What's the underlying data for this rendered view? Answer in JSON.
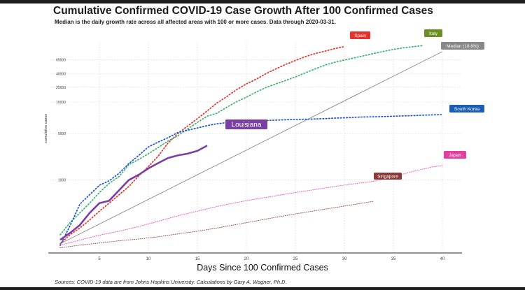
{
  "title": "Cumulative Confirmed COVID-19 Case Growth After 100 Confirmed Cases",
  "subtitle": "Median is the daily growth rate across all affected areas with 100 or more cases. Data through 2020-03-31.",
  "source": "Sources: COVID-19 data are from Johns Hopkins University. Calculations by Gary A. Wagner, Ph.D.",
  "colors": {
    "Spain": "#e8312a",
    "Italy": "#3cb371",
    "Median (18.6%)": "#888888",
    "South Korea": "#1a4fd8",
    "Japan": "#ee3fb0",
    "Singapore": "#8b3a3a",
    "Louisiana": "#7a3fa0"
  },
  "chart_data": {
    "type": "line",
    "title": "Cumulative Confirmed COVID-19 Case Growth After 100 Confirmed Cases",
    "xlabel": "Days Since 100 Confirmed Cases",
    "ylabel": "cumulative cases",
    "log_y": true,
    "xlim": [
      0,
      42
    ],
    "ylim": [
      80,
      120000
    ],
    "x_ticks": [
      5,
      10,
      15,
      20,
      25,
      30,
      35,
      40
    ],
    "y_ticks": [
      1000,
      5000,
      15000,
      25000,
      40000,
      65000
    ],
    "y_tick_labels": [
      "1000",
      "5000",
      "15000",
      "25000",
      "40000",
      "65000"
    ],
    "grid": true,
    "series": [
      {
        "name": "Spain",
        "style": "dotted",
        "label_box_color": "#e8312a",
        "x": [
          1,
          2,
          3,
          4,
          5,
          6,
          7,
          8,
          9,
          10,
          11,
          12,
          13,
          14,
          15,
          16,
          17,
          18,
          19,
          20,
          21,
          22,
          23,
          24,
          25,
          26,
          27,
          28,
          29,
          30
        ],
        "y": [
          110,
          150,
          190,
          250,
          340,
          450,
          600,
          800,
          1150,
          1600,
          2300,
          3600,
          5000,
          6500,
          8400,
          11000,
          14500,
          18000,
          23000,
          28000,
          33000,
          40000,
          47000,
          55000,
          63000,
          72000,
          80000,
          87000,
          95000,
          102000
        ]
      },
      {
        "name": "Italy",
        "style": "dotted",
        "label_box_color": "#6b8e23",
        "x": [
          1,
          2,
          3,
          4,
          5,
          6,
          7,
          8,
          9,
          10,
          11,
          12,
          13,
          14,
          15,
          16,
          17,
          18,
          19,
          20,
          21,
          22,
          23,
          24,
          25,
          26,
          27,
          28,
          29,
          30,
          31,
          32,
          33,
          34,
          35,
          36,
          37,
          38
        ],
        "y": [
          150,
          230,
          320,
          450,
          650,
          890,
          1130,
          1700,
          2040,
          2500,
          3090,
          3860,
          4640,
          5880,
          7380,
          9170,
          10150,
          12460,
          15110,
          17660,
          21160,
          24750,
          27980,
          31500,
          35700,
          41000,
          47000,
          53600,
          59100,
          63900,
          69100,
          74400,
          80500,
          86500,
          92500,
          97700,
          101700,
          105800
        ]
      },
      {
        "name": "Median (18.6%)",
        "style": "solid",
        "label_box_color": "#888888",
        "x": [
          1,
          40
        ],
        "y": [
          110,
          86000
        ]
      },
      {
        "name": "South Korea",
        "style": "dotted",
        "label_box_color": "#1a5fb4",
        "x": [
          1,
          2,
          3,
          4,
          5,
          6,
          7,
          8,
          9,
          10,
          11,
          12,
          13,
          14,
          15,
          16,
          17,
          18,
          19,
          20,
          21,
          22,
          23,
          24,
          25,
          26,
          27,
          28,
          29,
          30,
          31,
          32,
          33,
          34,
          35,
          36,
          37,
          38,
          39,
          40
        ],
        "y": [
          104,
          204,
          433,
          602,
          833,
          977,
          1261,
          1766,
          2337,
          3150,
          3736,
          4335,
          5186,
          5621,
          6088,
          6593,
          7041,
          7313,
          7478,
          7513,
          7755,
          7869,
          7979,
          8086,
          8162,
          8236,
          8320,
          8413,
          8565,
          8652,
          8799,
          8897,
          8961,
          9037,
          9137,
          9241,
          9332,
          9478,
          9583,
          9661
        ]
      },
      {
        "name": "Japan",
        "style": "dotted",
        "label_box_color": "#e040a0",
        "x": [
          1,
          3,
          5,
          7,
          9,
          11,
          13,
          15,
          17,
          19,
          21,
          23,
          25,
          27,
          29,
          31,
          33,
          35,
          37,
          39,
          40
        ],
        "y": [
          105,
          125,
          148,
          170,
          200,
          240,
          290,
          340,
          400,
          460,
          520,
          580,
          650,
          720,
          800,
          880,
          960,
          1120,
          1350,
          1580,
          1650
        ]
      },
      {
        "name": "Singapore",
        "style": "dotted",
        "label_box_color": "#8b3a3a",
        "x": [
          1,
          3,
          5,
          7,
          9,
          11,
          13,
          15,
          17,
          19,
          21,
          23,
          25,
          27,
          29,
          31,
          33
        ],
        "y": [
          96,
          105,
          113,
          122,
          130,
          140,
          155,
          170,
          190,
          215,
          243,
          276,
          310,
          345,
          385,
          430,
          480
        ]
      },
      {
        "name": "Louisiana",
        "style": "solid",
        "label_box_color": "#7a3fa0",
        "x": [
          1,
          2,
          3,
          4,
          5,
          6,
          7,
          8,
          9,
          10,
          11,
          12,
          13,
          14,
          15,
          16
        ],
        "y": [
          126,
          160,
          210,
          320,
          450,
          490,
          700,
          1000,
          1200,
          1500,
          1800,
          2150,
          2350,
          2500,
          2750,
          3300
        ]
      }
    ]
  }
}
